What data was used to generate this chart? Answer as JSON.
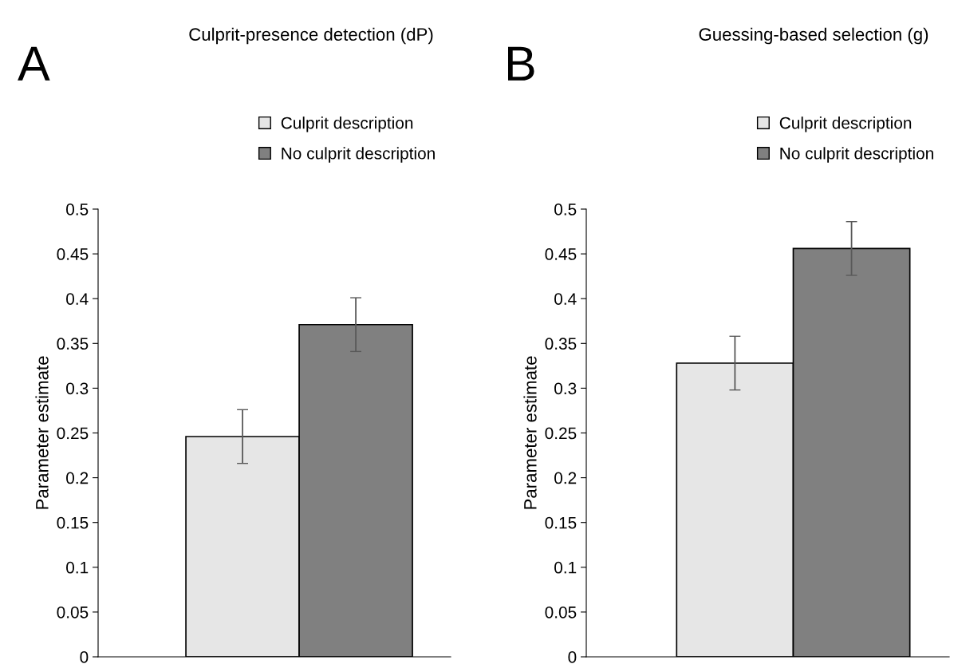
{
  "chart_data": [
    {
      "type": "bar",
      "title": "Culprit-presence detection (dP)",
      "ylabel": "Parameter estimate",
      "annotations": [
        "A"
      ],
      "categories": [
        null
      ],
      "series": [
        {
          "name": "Culprit description",
          "color": "#e6e6e6",
          "values": [
            0.246
          ],
          "errors": [
            0.03
          ]
        },
        {
          "name": "No culprit description",
          "color": "#808080",
          "values": [
            0.371
          ],
          "errors": [
            0.03
          ]
        }
      ],
      "ylim": [
        0,
        0.5
      ],
      "yticks": [
        0,
        0.05,
        0.1,
        0.15,
        0.2,
        0.25,
        0.3,
        0.35,
        0.4,
        0.45,
        0.5
      ],
      "grid": false,
      "legend": "top right"
    },
    {
      "type": "bar",
      "title": "Guessing-based selection (g)",
      "ylabel": "Parameter estimate",
      "annotations": [
        "B"
      ],
      "categories": [
        null
      ],
      "series": [
        {
          "name": "Culprit description",
          "color": "#e6e6e6",
          "values": [
            0.328
          ],
          "errors": [
            0.03
          ]
        },
        {
          "name": "No culprit description",
          "color": "#808080",
          "values": [
            0.456
          ],
          "errors": [
            0.03
          ]
        }
      ],
      "ylim": [
        0,
        0.5
      ],
      "yticks": [
        0,
        0.05,
        0.1,
        0.15,
        0.2,
        0.25,
        0.3,
        0.35,
        0.4,
        0.45,
        0.5
      ],
      "grid": false,
      "legend": "top right"
    }
  ]
}
